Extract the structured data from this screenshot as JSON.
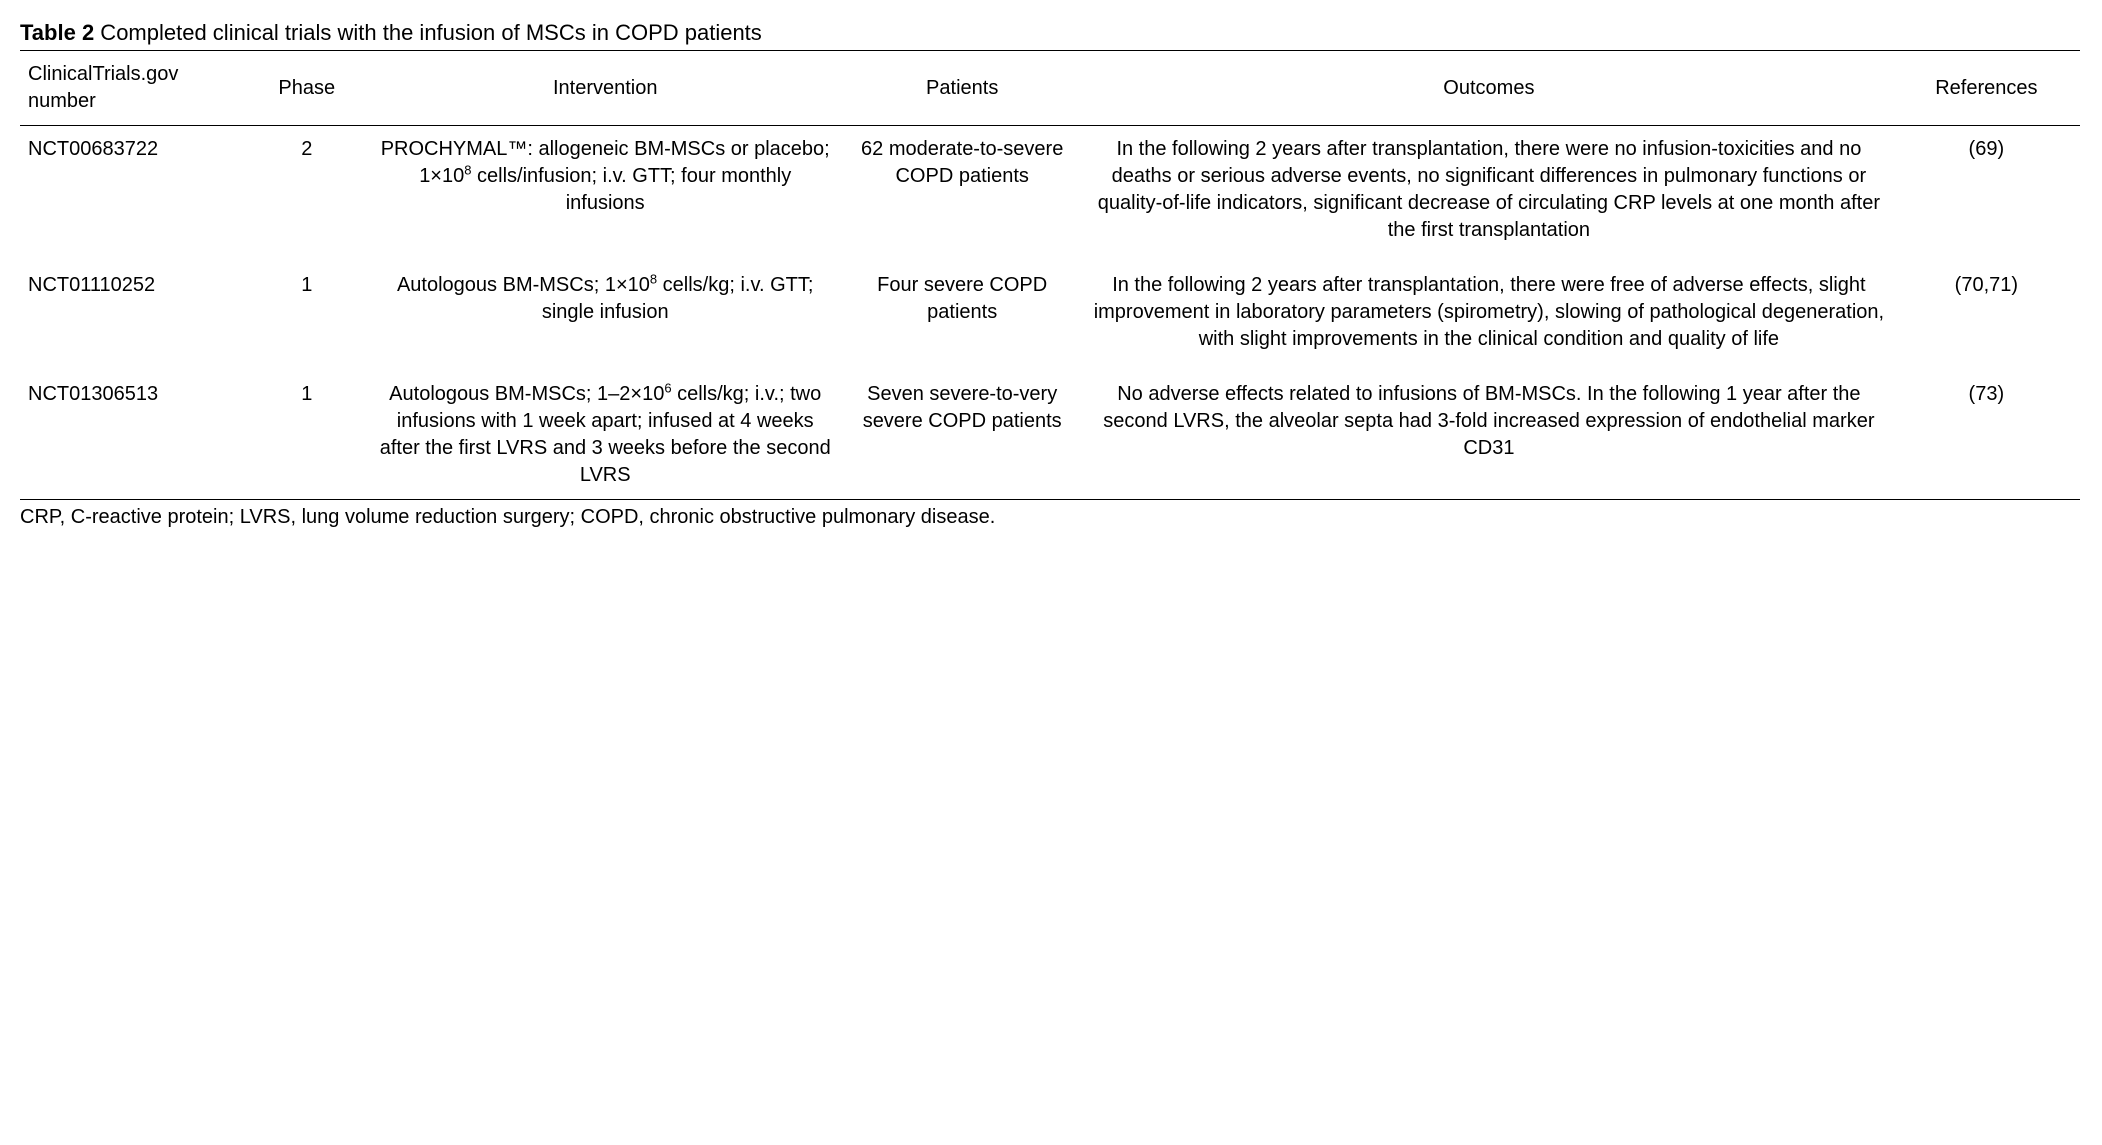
{
  "caption_label": "Table 2",
  "caption_text": " Completed clinical trials with the infusion of MSCs in COPD patients",
  "columns": {
    "trial": "ClinicalTrials.gov number",
    "phase": "Phase",
    "intervention": "Intervention",
    "patients": "Patients",
    "outcomes": "Outcomes",
    "references": "References"
  },
  "rows": [
    {
      "trial": "NCT00683722",
      "phase": "2",
      "intervention_html": "PROCHYMAL™: allogeneic BM-MSCs or placebo; 1×10<sup>8</sup> cells/infusion; i.v. GTT; four monthly infusions",
      "patients": "62 moderate-to-severe COPD patients",
      "outcomes": "In the following 2 years after transplantation, there were no infusion-toxicities and no deaths or serious adverse events, no significant differences in pulmonary functions or quality-of-life indicators, significant decrease of circulating CRP levels at one month after the first transplantation",
      "references": "(69)"
    },
    {
      "trial": "NCT01110252",
      "phase": "1",
      "intervention_html": "Autologous BM-MSCs; 1×10<sup>8</sup> cells/kg; i.v. GTT; single infusion",
      "patients": "Four severe COPD patients",
      "outcomes": "In the following 2 years after transplantation, there were free of adverse effects, slight improvement in laboratory parameters (spirometry), slowing of pathological degeneration, with slight improvements in the clinical condition and quality of life",
      "references": "(70,71)"
    },
    {
      "trial": "NCT01306513",
      "phase": "1",
      "intervention_html": "Autologous BM-MSCs; 1–2×10<sup>6</sup> cells/kg; i.v.; two infusions with 1 week apart; infused at 4 weeks after the first LVRS and 3 weeks before the second LVRS",
      "patients": "Seven severe-to-very severe COPD patients",
      "outcomes": "No adverse effects related to infusions of BM-MSCs. In the following 1 year after the second LVRS, the alveolar septa had 3-fold increased expression of endothelial marker CD31",
      "references": "(73)"
    }
  ],
  "footnote": "CRP, C-reactive protein; LVRS, lung volume reduction surgery; COPD, chronic obstructive pulmonary disease."
}
